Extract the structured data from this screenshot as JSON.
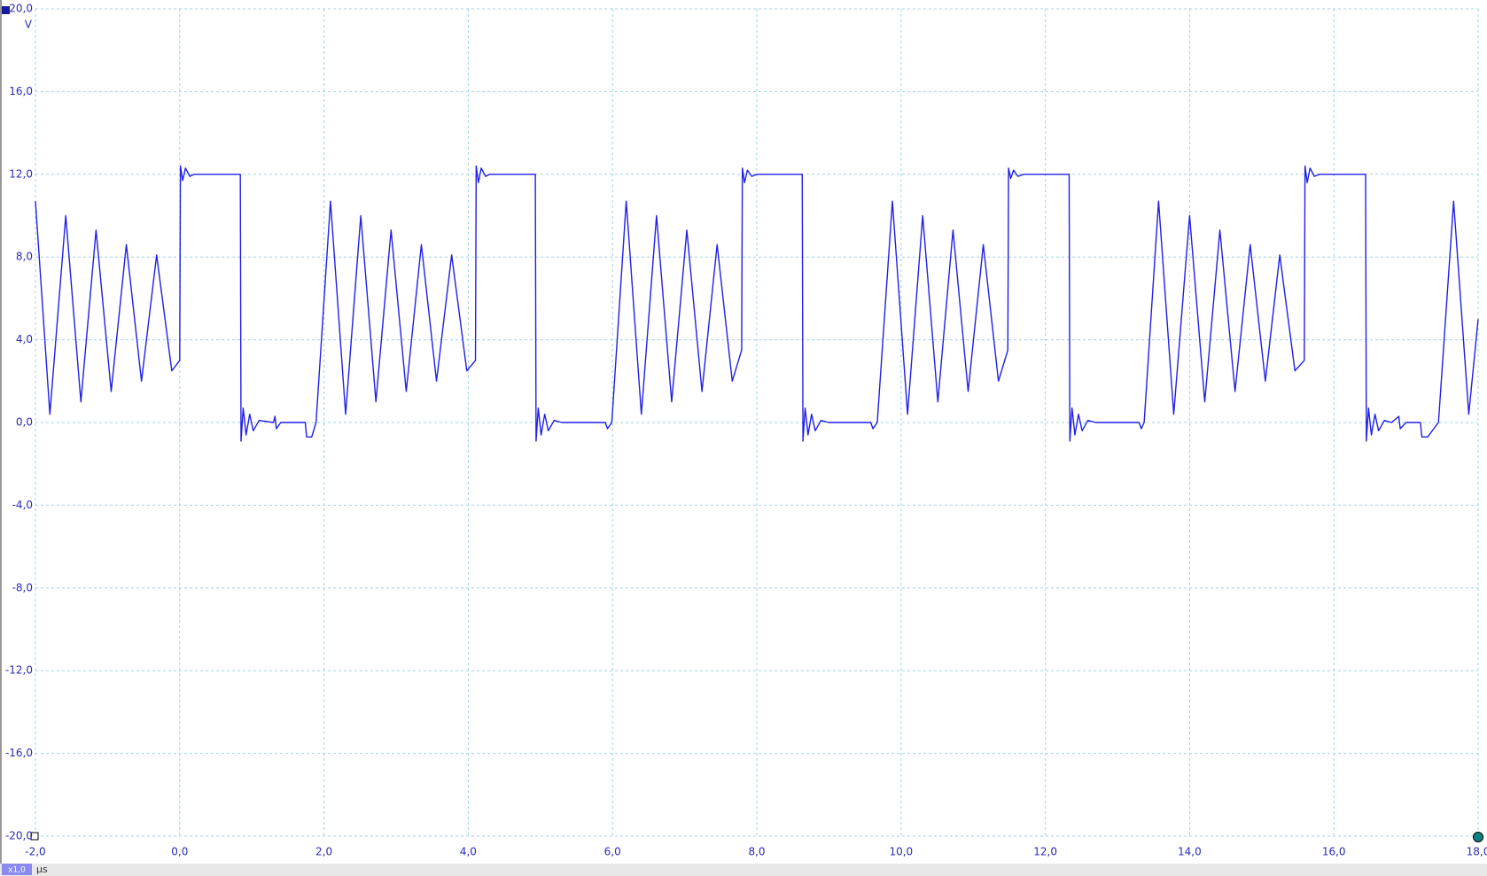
{
  "chart_data": {
    "type": "line",
    "y_unit": "V",
    "x_unit": "µs",
    "zoom_label": "x1,0",
    "color": "#1f1fe6",
    "grid": true,
    "xlim": [
      -2,
      18
    ],
    "ylim": [
      -20,
      20
    ],
    "xticks": [
      {
        "value": -2,
        "label": "-2,0"
      },
      {
        "value": 0,
        "label": "0,0"
      },
      {
        "value": 2,
        "label": "2,0"
      },
      {
        "value": 4,
        "label": "4,0"
      },
      {
        "value": 6,
        "label": "6,0"
      },
      {
        "value": 8,
        "label": "8,0"
      },
      {
        "value": 10,
        "label": "10,0"
      },
      {
        "value": 12,
        "label": "12,0"
      },
      {
        "value": 14,
        "label": "14,0"
      },
      {
        "value": 16,
        "label": "16,0"
      },
      {
        "value": 18,
        "label": "18,0"
      }
    ],
    "yticks": [
      {
        "value": -20,
        "label": "-20,0"
      },
      {
        "value": -16,
        "label": "-16,0"
      },
      {
        "value": -12,
        "label": "-12,0"
      },
      {
        "value": -8,
        "label": "-8,0"
      },
      {
        "value": -4,
        "label": "-4,0"
      },
      {
        "value": 0,
        "label": "0,0"
      },
      {
        "value": 4,
        "label": "4,0"
      },
      {
        "value": 8,
        "label": "8,0"
      },
      {
        "value": 12,
        "label": "12,0"
      },
      {
        "value": 16,
        "label": "16,0"
      },
      {
        "value": 20,
        "label": "20,0"
      }
    ],
    "x": [
      -2.0,
      -1.8,
      -1.58,
      -1.37,
      -1.16,
      -0.95,
      -0.74,
      -0.53,
      -0.32,
      -0.11,
      0.0,
      0.01,
      0.04,
      0.08,
      0.14,
      0.2,
      0.84,
      0.85,
      0.88,
      0.92,
      0.97,
      1.02,
      1.1,
      1.3,
      1.32,
      1.34,
      1.4,
      1.74,
      1.76,
      1.83,
      1.89,
      2.09,
      2.3,
      2.51,
      2.72,
      2.93,
      3.14,
      3.35,
      3.56,
      3.77,
      3.98,
      4.1,
      4.11,
      4.14,
      4.18,
      4.24,
      4.3,
      4.93,
      4.94,
      4.97,
      5.01,
      5.06,
      5.11,
      5.19,
      5.3,
      5.9,
      5.93,
      5.99,
      6.19,
      6.4,
      6.61,
      6.82,
      7.03,
      7.24,
      7.45,
      7.66,
      7.79,
      7.8,
      7.83,
      7.87,
      7.93,
      8.0,
      8.63,
      8.64,
      8.67,
      8.71,
      8.76,
      8.81,
      8.89,
      9.0,
      9.58,
      9.61,
      9.67,
      9.88,
      10.09,
      10.3,
      10.51,
      10.72,
      10.93,
      11.14,
      11.35,
      11.48,
      11.49,
      11.52,
      11.56,
      11.62,
      11.7,
      12.33,
      12.34,
      12.37,
      12.41,
      12.46,
      12.51,
      12.59,
      12.7,
      13.3,
      13.33,
      13.37,
      13.57,
      13.78,
      14.0,
      14.21,
      14.42,
      14.63,
      14.84,
      15.05,
      15.25,
      15.46,
      15.59,
      15.6,
      15.63,
      15.67,
      15.73,
      15.8,
      16.44,
      16.45,
      16.48,
      16.52,
      16.57,
      16.62,
      16.7,
      16.8,
      16.9,
      16.92,
      17.0,
      17.2,
      17.22,
      17.3,
      17.45,
      17.66,
      17.87,
      18.0
    ],
    "values": [
      10.7,
      0.4,
      10,
      1,
      9.3,
      1.5,
      8.6,
      2,
      8.1,
      2.5,
      3.0,
      12.4,
      11.7,
      12.3,
      11.9,
      12,
      12,
      -0.9,
      0.7,
      -0.6,
      0.4,
      -0.4,
      0.1,
      0,
      0.3,
      -0.3,
      0,
      0,
      -0.7,
      -0.7,
      0,
      10.7,
      0.4,
      10,
      1,
      9.3,
      1.5,
      8.6,
      2,
      8.1,
      2.5,
      3.0,
      12.4,
      11.6,
      12.3,
      11.9,
      12,
      12,
      -0.9,
      0.7,
      -0.6,
      0.4,
      -0.4,
      0.1,
      0,
      0,
      -0.3,
      0,
      10.7,
      0.4,
      10,
      1,
      9.3,
      1.5,
      8.6,
      2,
      3.5,
      12.3,
      11.6,
      12.2,
      11.9,
      12,
      12,
      -0.9,
      0.7,
      -0.6,
      0.4,
      -0.4,
      0.1,
      0,
      0,
      -0.3,
      0,
      10.7,
      0.4,
      10,
      1,
      9.3,
      1.5,
      8.6,
      2,
      3.5,
      12.3,
      11.8,
      12.2,
      11.9,
      12,
      12,
      -0.9,
      0.7,
      -0.6,
      0.4,
      -0.4,
      0.1,
      0,
      0,
      -0.3,
      0,
      10.7,
      0.4,
      10,
      1,
      9.3,
      1.5,
      8.6,
      2,
      8.1,
      2.5,
      3.0,
      12.4,
      11.6,
      12.3,
      11.9,
      12,
      12,
      -0.9,
      0.7,
      -0.6,
      0.4,
      -0.4,
      0.1,
      0,
      0.3,
      -0.3,
      0,
      0,
      -0.7,
      -0.7,
      0,
      10.7,
      0.4,
      5.0
    ]
  }
}
